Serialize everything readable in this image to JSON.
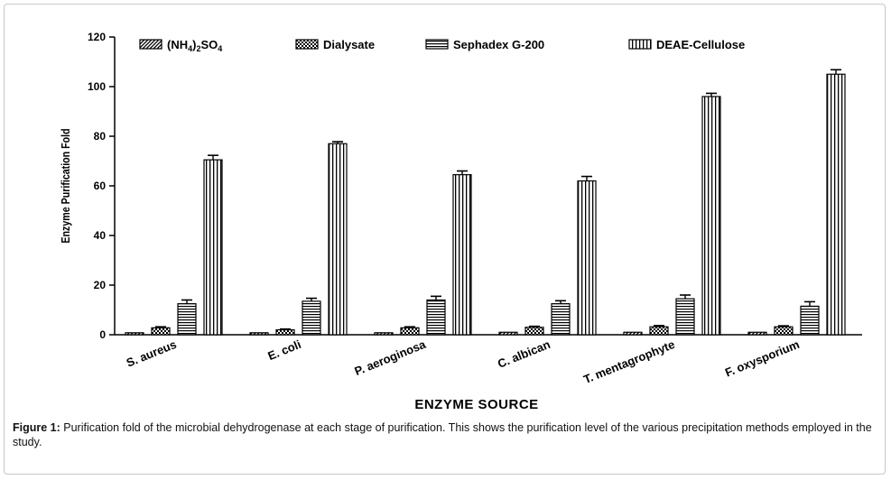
{
  "chart_data": {
    "type": "bar",
    "xlabel": "ENZYME SOURCE",
    "ylabel": "Enzyme Purification Fold",
    "ylim": [
      0,
      120
    ],
    "yticks": [
      "0",
      "20",
      "40",
      "60",
      "80",
      "100",
      "120"
    ],
    "grid": false,
    "legend_position": "top",
    "categories": [
      "S. aureus",
      "E. coli",
      "P. aeroginosa",
      "C. albican",
      "T. mentagrophyte",
      "F. oxysporium"
    ],
    "series": [
      {
        "name": "(NH4)2SO4",
        "pattern": "diagonal-hatch",
        "values": [
          0.8,
          0.8,
          0.8,
          1.0,
          1.0,
          1.0
        ],
        "errors": [
          0,
          0,
          0,
          0,
          0,
          0
        ]
      },
      {
        "name": "Dialysate",
        "pattern": "checker",
        "values": [
          2.8,
          2.0,
          2.8,
          3.0,
          3.2,
          3.2
        ],
        "errors": [
          0.4,
          0.3,
          0.4,
          0.4,
          0.5,
          0.4
        ]
      },
      {
        "name": "Sephadex G-200",
        "pattern": "horizontal-lines",
        "values": [
          12.5,
          13.5,
          14.0,
          12.5,
          14.5,
          11.5
        ],
        "errors": [
          1.5,
          1.2,
          1.5,
          1.2,
          1.5,
          1.8
        ]
      },
      {
        "name": "DEAE-Cellulose",
        "pattern": "vertical-lines",
        "values": [
          70.5,
          77.0,
          64.5,
          62.0,
          96.0,
          105.0
        ],
        "errors": [
          1.8,
          0.8,
          1.5,
          1.8,
          1.3,
          1.8
        ]
      }
    ]
  },
  "caption": {
    "label": "Figure 1:",
    "text": " Purification fold of the microbial dehydrogenase at each stage of purification. This shows the purification level of the various precipitation methods employed in the study."
  }
}
